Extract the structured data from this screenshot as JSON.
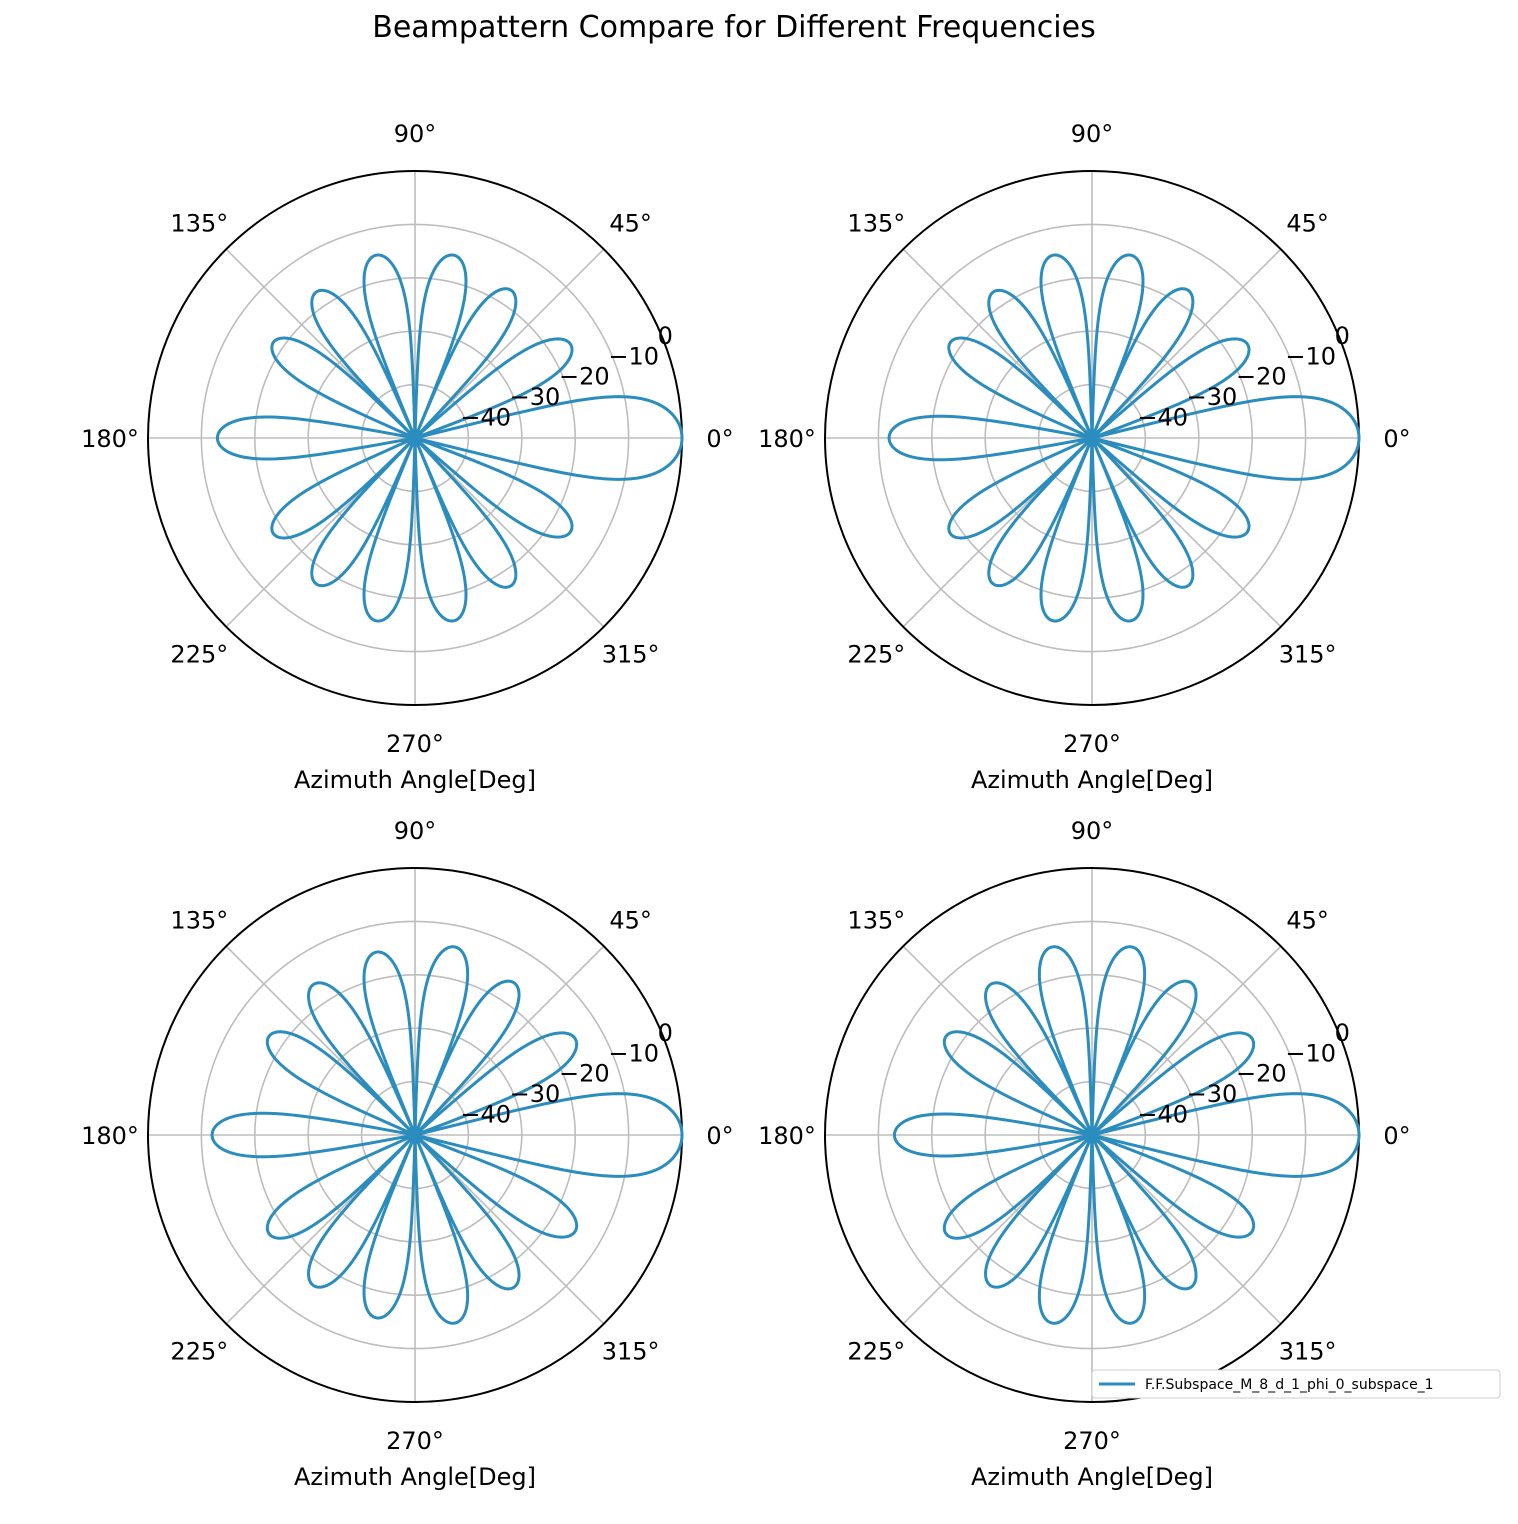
{
  "chart_data": {
    "title": "Beampattern Compare for Different Frequencies",
    "legend": {
      "entries": [
        "F.F.Subspace_M_8_d_1_phi_0_subspace_1"
      ],
      "placement": "lower-right",
      "color": "#2b8cbe"
    },
    "subplots": [
      {
        "type": "polar",
        "xlabel": "Azimuth Angle[Deg]",
        "theta_ticks": [
          "0°",
          "45°",
          "90°",
          "135°",
          "180°",
          "225°",
          "270°",
          "315°"
        ],
        "r_ticks": [
          "−40",
          "−30",
          "−20",
          "−10",
          "0"
        ],
        "rlim": [
          -50,
          0
        ],
        "grid": true,
        "series": [
          {
            "name": "F.F.Subspace_M_8_d_1_phi_0_subspace_1",
            "mainlobe_deg": 0,
            "mainlobe_db": 0,
            "sidelobe_angles_deg": [
              31,
              57,
              78,
              102,
              124,
              146,
              180,
              214,
              236,
              258,
              282,
              303,
              329
            ],
            "sidelobe_db": [
              -16,
              -17,
              -15,
              -15,
              -17,
              -18,
              -13,
              -18,
              -17,
              -15,
              -15,
              -17,
              -16
            ]
          }
        ]
      },
      {
        "type": "polar",
        "xlabel": "Azimuth Angle[Deg]",
        "theta_ticks": [
          "0°",
          "45°",
          "90°",
          "135°",
          "180°",
          "225°",
          "270°",
          "315°"
        ],
        "r_ticks": [
          "−40",
          "−30",
          "−20",
          "−10",
          "0"
        ],
        "rlim": [
          -50,
          0
        ],
        "grid": true,
        "series": [
          {
            "name": "F.F.Subspace_M_8_d_1_phi_0_subspace_1",
            "mainlobe_deg": 0,
            "mainlobe_db": 0,
            "sidelobe_angles_deg": [
              31,
              57,
              78,
              102,
              124,
              146,
              180,
              214,
              236,
              258,
              282,
              303,
              329
            ],
            "sidelobe_db": [
              -16,
              -17,
              -15,
              -15,
              -17,
              -18,
              -12,
              -18,
              -17,
              -15,
              -15,
              -17,
              -16
            ]
          }
        ]
      },
      {
        "type": "polar",
        "xlabel": "Azimuth Angle[Deg]",
        "theta_ticks": [
          "0°",
          "45°",
          "90°",
          "135°",
          "180°",
          "225°",
          "270°",
          "315°"
        ],
        "r_ticks": [
          "−40",
          "−30",
          "−20",
          "−10",
          "0"
        ],
        "rlim": [
          -50,
          0
        ],
        "grid": true,
        "series": [
          {
            "name": "F.F.Subspace_M_8_d_1_phi_0_subspace_1",
            "mainlobe_deg": 0,
            "mainlobe_db": 0,
            "sidelobe_angles_deg": [
              31,
              57,
              78,
              102,
              124,
              146,
              180,
              214,
              236,
              258,
              282,
              303,
              329
            ],
            "sidelobe_db": [
              -15,
              -16,
              -14,
              -15,
              -16,
              -17,
              -12,
              -17,
              -16,
              -15,
              -14,
              -16,
              -15
            ]
          }
        ]
      },
      {
        "type": "polar",
        "xlabel": "Azimuth Angle[Deg]",
        "theta_ticks": [
          "0°",
          "45°",
          "90°",
          "135°",
          "180°",
          "225°",
          "270°",
          "315°"
        ],
        "r_ticks": [
          "−40",
          "−30",
          "−20",
          "−10",
          "0"
        ],
        "rlim": [
          -50,
          0
        ],
        "grid": true,
        "series": [
          {
            "name": "F.F.Subspace_M_8_d_1_phi_0_subspace_1",
            "mainlobe_deg": 0,
            "mainlobe_db": 0,
            "sidelobe_angles_deg": [
              31,
              57,
              78,
              102,
              124,
              146,
              180,
              214,
              236,
              258,
              282,
              303,
              329
            ],
            "sidelobe_db": [
              -15,
              -16,
              -14,
              -14,
              -16,
              -17,
              -13,
              -17,
              -16,
              -14,
              -14,
              -16,
              -15
            ]
          }
        ]
      }
    ]
  }
}
